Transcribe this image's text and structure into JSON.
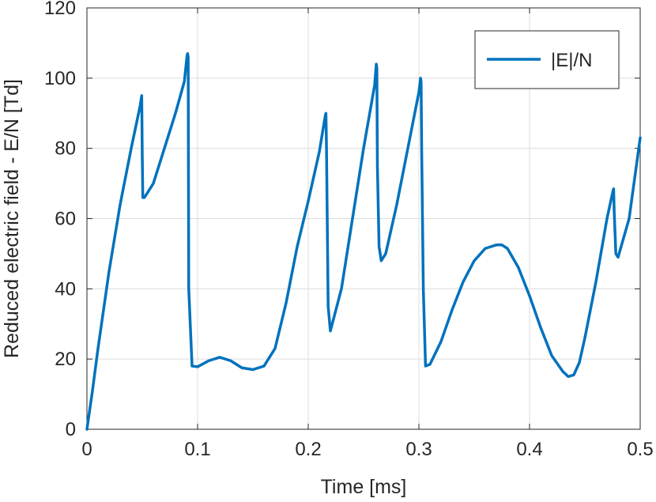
{
  "chart_data": {
    "type": "line",
    "title": "",
    "xlabel": "Time [ms]",
    "ylabel": "Reduced electric field - E/N [Td]",
    "xlim": [
      0,
      0.5
    ],
    "ylim": [
      0,
      120
    ],
    "xticks": [
      0,
      0.1,
      0.2,
      0.3,
      0.4,
      0.5
    ],
    "xtick_labels": [
      "0",
      "0.1",
      "0.2",
      "0.3",
      "0.4",
      "0.5"
    ],
    "yticks": [
      0,
      20,
      40,
      60,
      80,
      100,
      120
    ],
    "ytick_labels": [
      "0",
      "20",
      "40",
      "60",
      "80",
      "100",
      "120"
    ],
    "grid": true,
    "legend_position": "top-right",
    "series": [
      {
        "name": "|E|/N",
        "color": "#0072BD",
        "x": [
          0,
          0.005,
          0.01,
          0.02,
          0.03,
          0.04,
          0.048,
          0.0495,
          0.05,
          0.0505,
          0.052,
          0.06,
          0.07,
          0.08,
          0.088,
          0.0905,
          0.091,
          0.0915,
          0.092,
          0.095,
          0.1,
          0.11,
          0.12,
          0.13,
          0.14,
          0.15,
          0.16,
          0.17,
          0.18,
          0.19,
          0.2,
          0.21,
          0.2155,
          0.216,
          0.2165,
          0.218,
          0.22,
          0.23,
          0.24,
          0.25,
          0.26,
          0.2615,
          0.262,
          0.2625,
          0.264,
          0.266,
          0.27,
          0.28,
          0.29,
          0.3,
          0.3015,
          0.302,
          0.3025,
          0.304,
          0.306,
          0.31,
          0.32,
          0.33,
          0.34,
          0.35,
          0.36,
          0.37,
          0.375,
          0.38,
          0.39,
          0.4,
          0.41,
          0.42,
          0.43,
          0.435,
          0.44,
          0.445,
          0.45,
          0.46,
          0.47,
          0.4755,
          0.476,
          0.4765,
          0.478,
          0.48,
          0.49,
          0.5
        ],
        "y": [
          0,
          11,
          23,
          45,
          64,
          80,
          92,
          95,
          78,
          66,
          66,
          70,
          80,
          90,
          99,
          106.5,
          107,
          106,
          40,
          18,
          17.8,
          19.5,
          20.5,
          19.5,
          17.5,
          17,
          18,
          23,
          36,
          52,
          65,
          79,
          89.5,
          90,
          80,
          35,
          28,
          40,
          60,
          80,
          98,
          104,
          103,
          75,
          52,
          48,
          50,
          64,
          80,
          96,
          100,
          99,
          80,
          40,
          18,
          18.5,
          25,
          34,
          42,
          48,
          51.5,
          52.5,
          52.5,
          51.5,
          46,
          38,
          29,
          21,
          16.5,
          15,
          15.5,
          19,
          26,
          42,
          60,
          68,
          68.5,
          62,
          50,
          49,
          60,
          83
        ]
      }
    ]
  }
}
